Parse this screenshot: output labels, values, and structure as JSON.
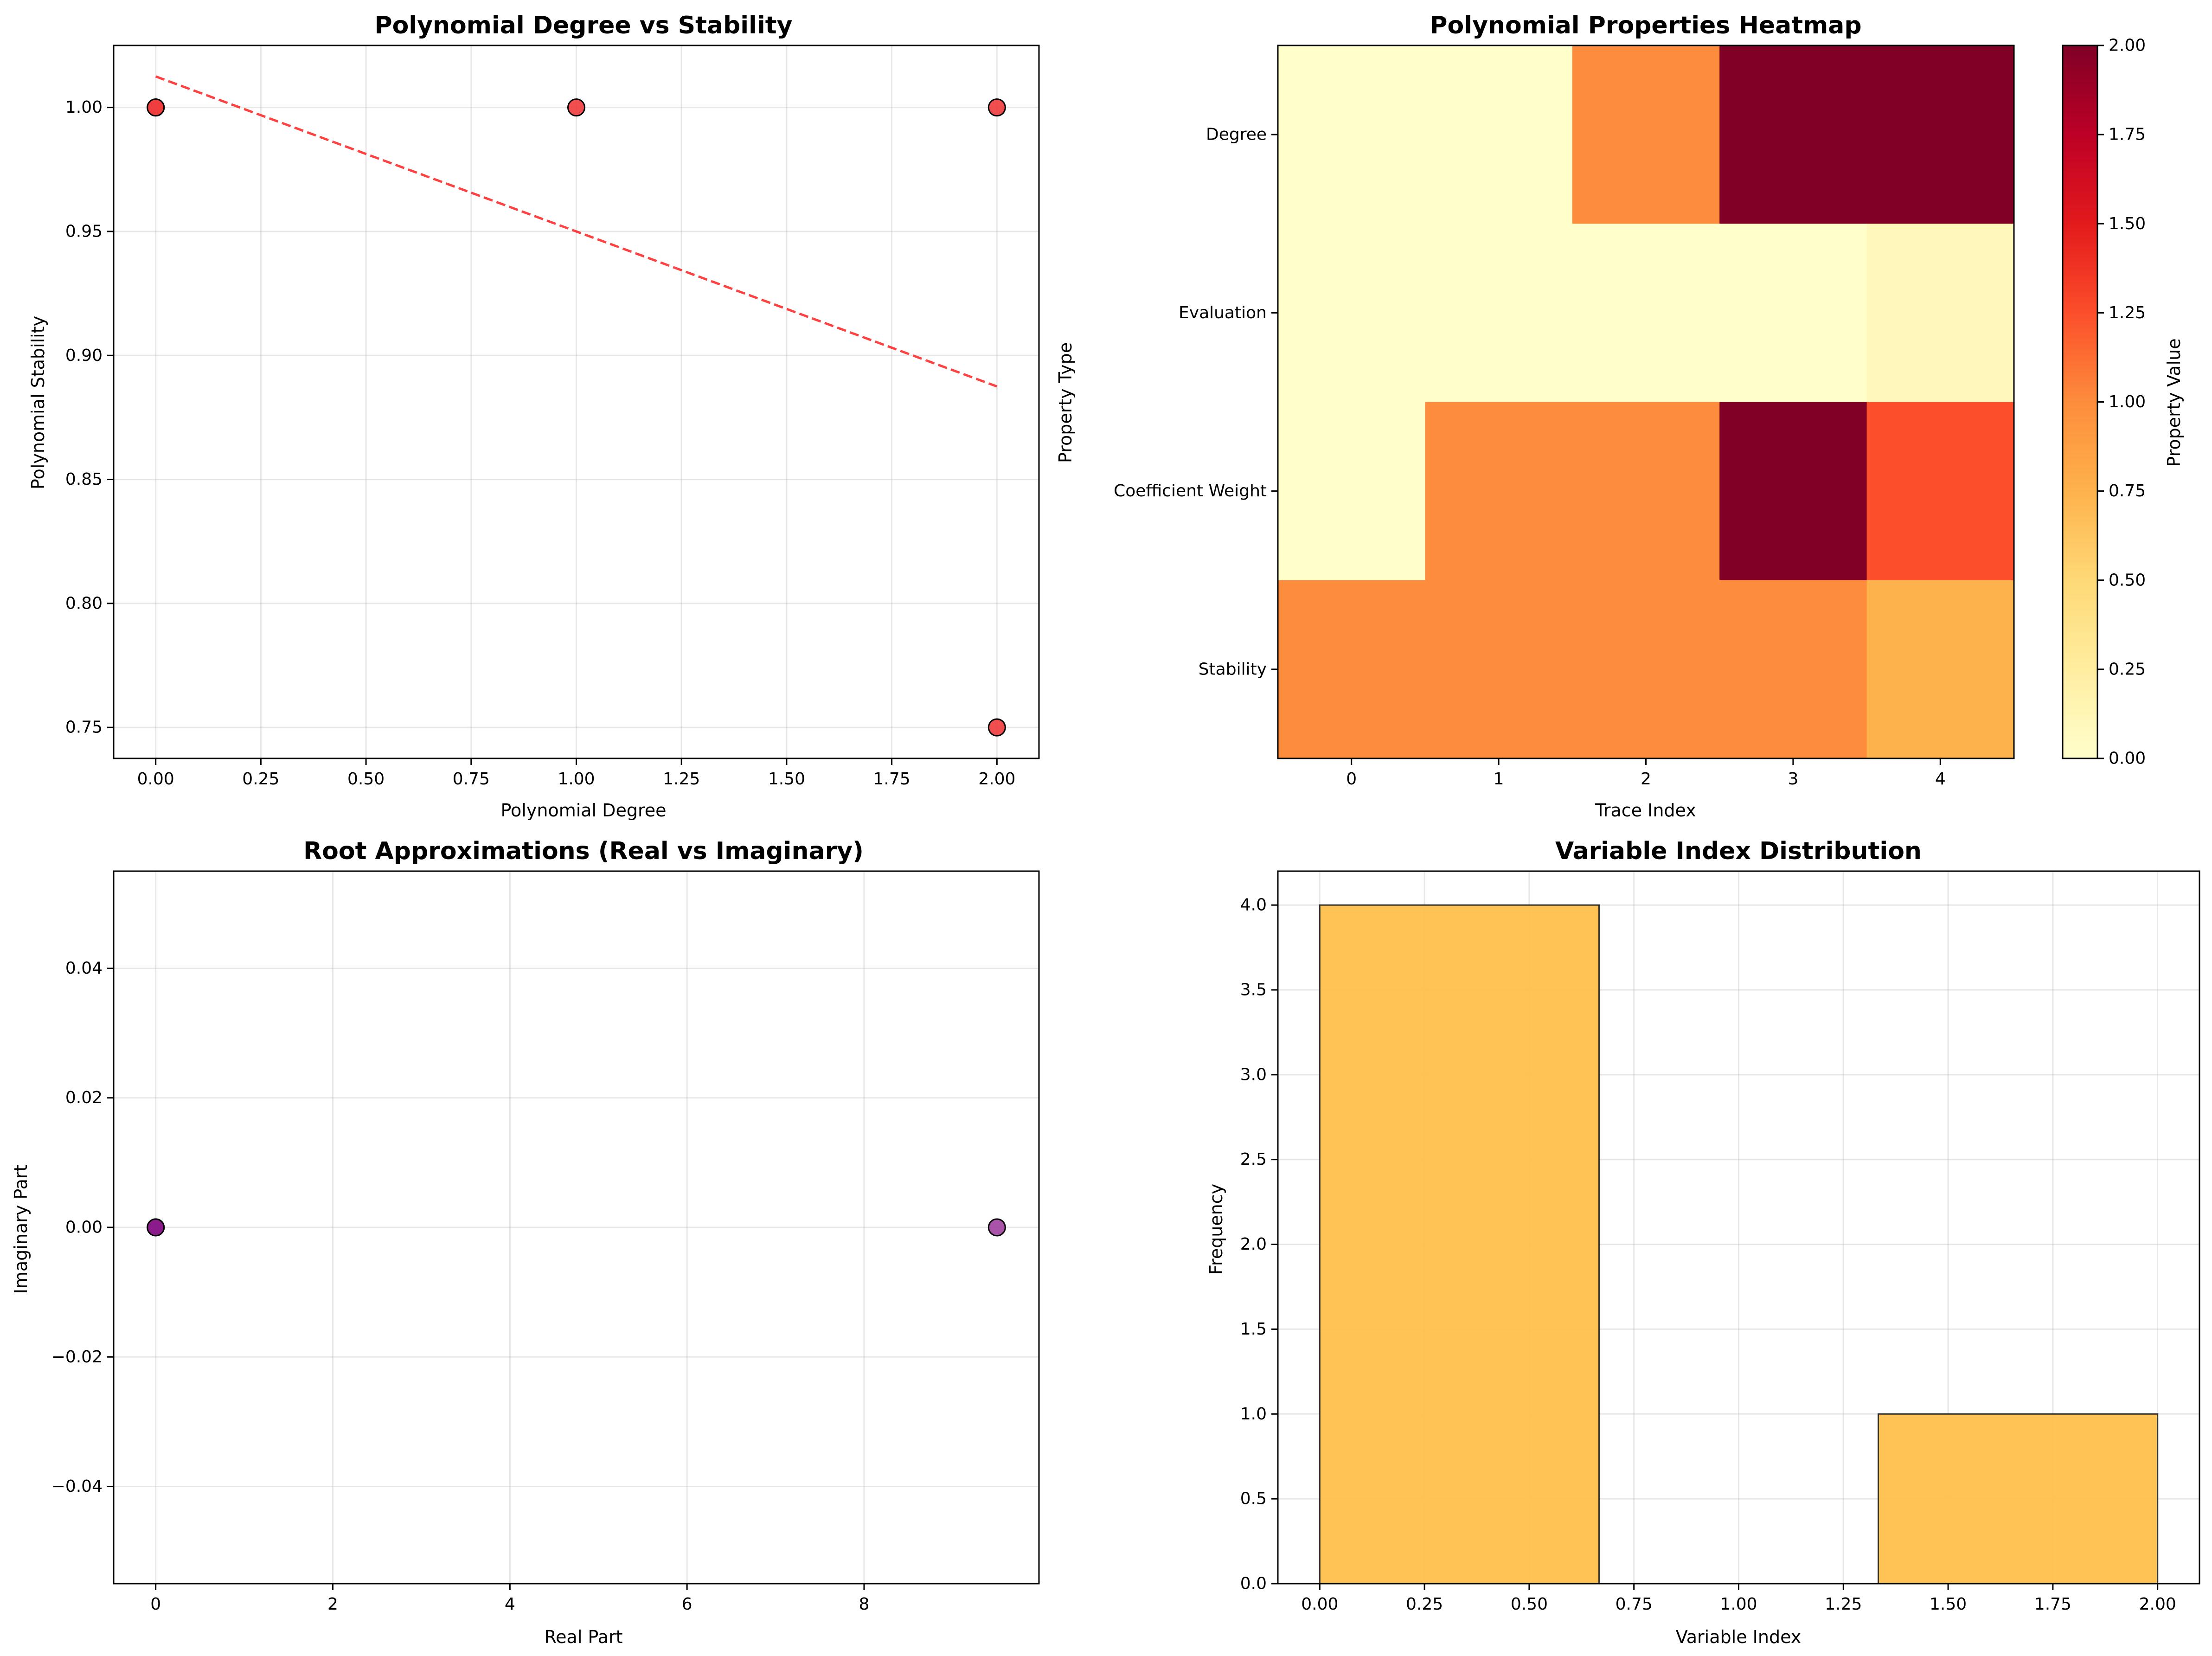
{
  "chart_data": [
    {
      "id": "degree-stability",
      "type": "scatter",
      "title": "Polynomial Degree vs Stability",
      "xlabel": "Polynomial Degree",
      "ylabel": "Polynomial Stability",
      "xlim": [
        -0.1,
        2.1
      ],
      "ylim": [
        0.7375,
        1.025
      ],
      "xticks": [
        0.0,
        0.25,
        0.5,
        0.75,
        1.0,
        1.25,
        1.5,
        1.75,
        2.0
      ],
      "xtick_labels": [
        "0.00",
        "0.25",
        "0.50",
        "0.75",
        "1.00",
        "1.25",
        "1.50",
        "1.75",
        "2.00"
      ],
      "yticks": [
        0.75,
        0.8,
        0.85,
        0.9,
        0.95,
        1.0
      ],
      "ytick_labels": [
        "0.75",
        "0.80",
        "0.85",
        "0.90",
        "0.95",
        "1.00"
      ],
      "points": [
        {
          "x": 0,
          "y": 1.0
        },
        {
          "x": 0,
          "y": 1.0
        },
        {
          "x": 1,
          "y": 1.0
        },
        {
          "x": 2,
          "y": 1.0
        },
        {
          "x": 2,
          "y": 0.75
        }
      ],
      "trendline": {
        "x": [
          0,
          2
        ],
        "y": [
          1.0125,
          0.8875
        ]
      },
      "grid": true,
      "colors": {
        "marker": "#f03c3c",
        "edge": "#000000",
        "trend": "#ff2020"
      }
    },
    {
      "id": "properties-heatmap",
      "type": "heatmap",
      "title": "Polynomial Properties Heatmap",
      "xlabel": "Trace Index",
      "ylabel": "Property Type",
      "x_categories": [
        "0",
        "1",
        "2",
        "3",
        "4"
      ],
      "y_categories": [
        "Degree",
        "Evaluation",
        "Coefficient Weight",
        "Stability"
      ],
      "values": [
        [
          0,
          0,
          1,
          2,
          2
        ],
        [
          0,
          0,
          0,
          0,
          0.1
        ],
        [
          0,
          1,
          1,
          2,
          1.25
        ],
        [
          1,
          1,
          1,
          1,
          0.75
        ]
      ],
      "colorbar": {
        "label": "Property Value",
        "range": [
          0,
          2
        ],
        "ticks": [
          0,
          0.25,
          0.5,
          0.75,
          1.0,
          1.25,
          1.5,
          1.75,
          2.0
        ],
        "tick_labels": [
          "0.00",
          "0.25",
          "0.50",
          "0.75",
          "1.00",
          "1.25",
          "1.50",
          "1.75",
          "2.00"
        ],
        "colormap": "YlOrRd"
      }
    },
    {
      "id": "root-approximations",
      "type": "scatter",
      "title": "Root Approximations (Real vs Imaginary)",
      "xlabel": "Real Part",
      "ylabel": "Imaginary Part",
      "xlim": [
        -0.475,
        9.975
      ],
      "ylim": [
        -0.055,
        0.055
      ],
      "xticks": [
        0,
        2,
        4,
        6,
        8
      ],
      "xtick_labels": [
        "0",
        "2",
        "4",
        "6",
        "8"
      ],
      "yticks": [
        -0.04,
        -0.02,
        0.0,
        0.02,
        0.04
      ],
      "ytick_labels": [
        "−0.04",
        "−0.02",
        "0.00",
        "0.02",
        "0.04"
      ],
      "points": [
        {
          "x": 0,
          "y": 0
        },
        {
          "x": 0,
          "y": 0
        },
        {
          "x": 9.5,
          "y": 0
        }
      ],
      "grid": true,
      "colors": {
        "marker": "#8a1a8a",
        "marker2": "#a040a0",
        "edge": "#000000"
      }
    },
    {
      "id": "variable-index-hist",
      "type": "bar",
      "title": "Variable Index Distribution",
      "xlabel": "Variable Index",
      "ylabel": "Frequency",
      "xlim": [
        -0.1,
        2.1
      ],
      "ylim": [
        0,
        4.2
      ],
      "bins": [
        {
          "start": 0.0,
          "end": 0.6667,
          "value": 4
        },
        {
          "start": 0.6667,
          "end": 1.3333,
          "value": 0
        },
        {
          "start": 1.3333,
          "end": 2.0,
          "value": 1
        }
      ],
      "xticks": [
        0.0,
        0.25,
        0.5,
        0.75,
        1.0,
        1.25,
        1.5,
        1.75,
        2.0
      ],
      "xtick_labels": [
        "0.00",
        "0.25",
        "0.50",
        "0.75",
        "1.00",
        "1.25",
        "1.50",
        "1.75",
        "2.00"
      ],
      "yticks": [
        0,
        0.5,
        1.0,
        1.5,
        2.0,
        2.5,
        3.0,
        3.5,
        4.0
      ],
      "ytick_labels": [
        "0.0",
        "0.5",
        "1.0",
        "1.5",
        "2.0",
        "2.5",
        "3.0",
        "3.5",
        "4.0"
      ],
      "grid": true,
      "colors": {
        "bar": "#ffc04c",
        "edge": "#333333"
      }
    }
  ]
}
